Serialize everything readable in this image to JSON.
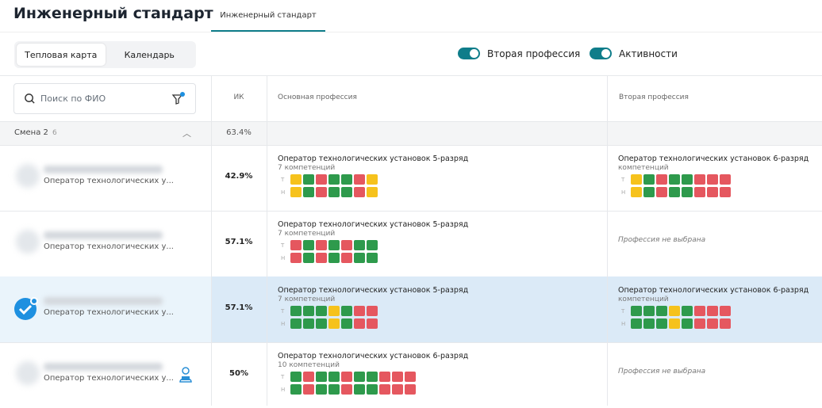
{
  "header": {
    "title": "Инженерный стандарт",
    "tab": "Инженерный стандарт"
  },
  "view": {
    "heatmap": "Тепловая карта",
    "calendar": "Календарь",
    "selected": "heatmap"
  },
  "toggles": [
    {
      "label": "Вторая профессия",
      "on": true
    },
    {
      "label": "Активности",
      "on": true
    }
  ],
  "search": {
    "placeholder": "Поиск по ФИО",
    "filter_active": true
  },
  "columns": {
    "ik": "ИК",
    "main": "Основная профессия",
    "second": "Вторая профессия"
  },
  "group": {
    "label": "Смена 2",
    "count": "6",
    "ik": "63.4%"
  },
  "colors": {
    "g": "#2e9a4c",
    "r": "#e5575f",
    "y": "#f6c21c",
    "accent": "#0f7d8a"
  },
  "row_labels": {
    "t": "Т",
    "h": "Н"
  },
  "rows": [
    {
      "subtitle": "Оператор технологических у...",
      "ik": "42.9%",
      "selected": false,
      "main": {
        "name": "Оператор технологических установок 5-разряд",
        "count": "7 компетенций",
        "t": "ygrggry",
        "h": "ygrggry"
      },
      "second": {
        "name": "Оператор технологических установок 6-разряд",
        "count": "компетенций",
        "t": "ygrggrrr",
        "h": "ygrggrrr"
      }
    },
    {
      "subtitle": "Оператор технологических у...",
      "ik": "57.1%",
      "selected": false,
      "main": {
        "name": "Оператор технологических установок 5-разряд",
        "count": "7 компетенций",
        "t": "rgrgrgg",
        "h": "rgrgrgg"
      },
      "second_empty": "Профессия не выбрана"
    },
    {
      "subtitle": "Оператор технологических у...",
      "ik": "57.1%",
      "selected": true,
      "main": {
        "name": "Оператор технологических установок 5-разряд",
        "count": "7 компетенций",
        "t": "gggygrr",
        "h": "gggygrr"
      },
      "second": {
        "name": "Оператор технологических установок 6-разряд",
        "count": "компетенций",
        "t": "gggygrrr",
        "h": "gggygrrr"
      }
    },
    {
      "subtitle": "Оператор технологических у...",
      "ik": "50%",
      "selected": false,
      "main": {
        "name": "Оператор технологических установок 6-разряд",
        "count": "10 компетенций",
        "t": "grggrggrrr",
        "h": "grggrggrrr"
      },
      "second_empty": "Профессия не выбрана"
    }
  ]
}
